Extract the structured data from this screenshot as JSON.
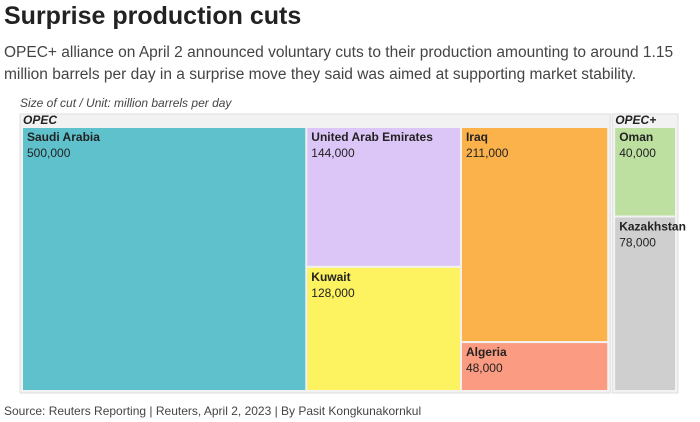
{
  "chart_data": {
    "type": "treemap",
    "title": "Surprise production cuts",
    "subtitle": "OPEC+ alliance on April 2 announced voluntary cuts to their production amounting to around 1.15 million barrels per day in a surprise move they said was aimed at supporting market stability.",
    "note": "Size of cut / Unit: million barrels per day",
    "source": "Source: Reuters Reporting | Reuters, April 2, 2023 | By Pasit Kongkunakornkul",
    "groups": [
      {
        "name": "OPEC",
        "categories": [
          "Saudi Arabia",
          "United Arab Emirates",
          "Kuwait",
          "Iraq",
          "Algeria"
        ],
        "values": [
          500000,
          144000,
          128000,
          211000,
          48000
        ],
        "value_labels": [
          "500,000",
          "144,000",
          "128,000",
          "211,000",
          "48,000"
        ],
        "colors": [
          "#5fc1cc",
          "#dcc6f7",
          "#fdf25f",
          "#fcb24b",
          "#fb9b81"
        ]
      },
      {
        "name": "OPEC+",
        "categories": [
          "Oman",
          "Kazakhstan"
        ],
        "values": [
          40000,
          78000
        ],
        "value_labels": [
          "40,000",
          "78,000"
        ],
        "colors": [
          "#bde0a1",
          "#cfcfcf"
        ]
      }
    ]
  }
}
